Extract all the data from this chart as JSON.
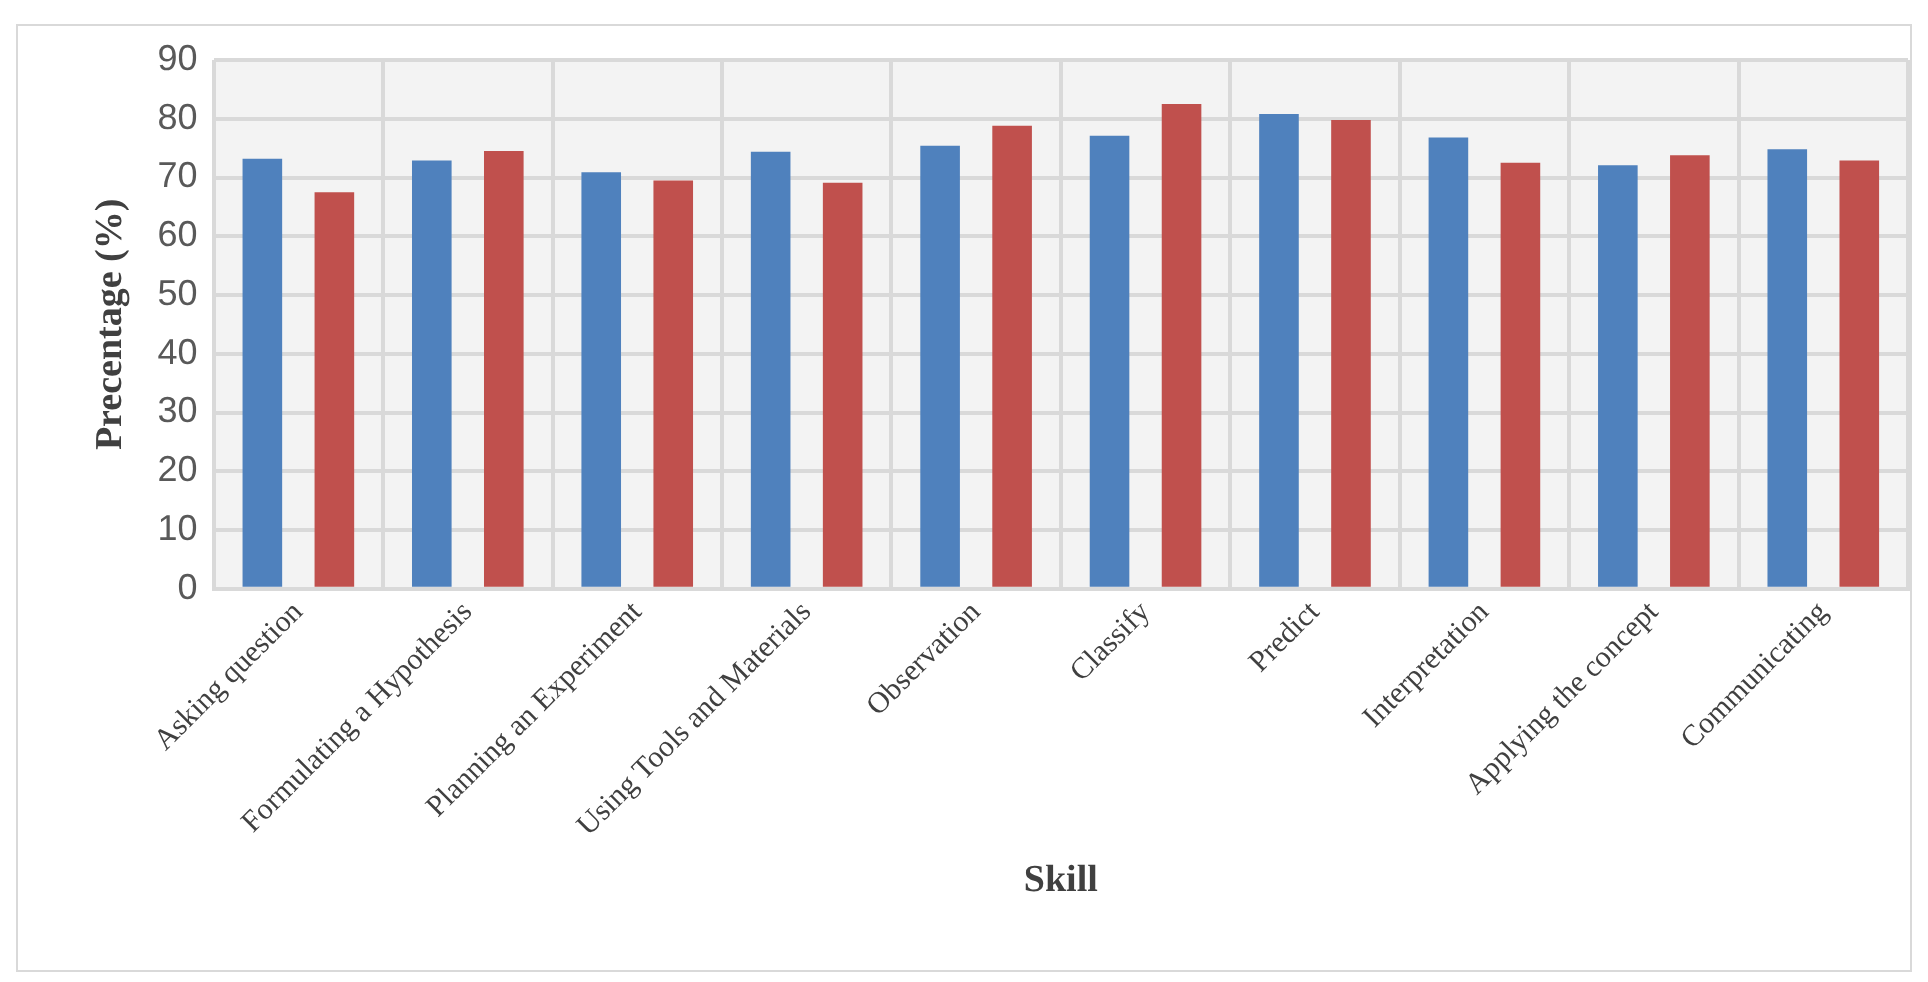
{
  "chart_data": {
    "type": "bar",
    "xlabel": "Skill",
    "ylabel": "Precentage (%)",
    "categories": [
      "Asking question",
      "Formulating a Hypothesis",
      "Planning an Experiment",
      "Using Tools and Materials",
      "Observation",
      "Classify",
      "Predict",
      "Interpretation",
      "Applying the concept",
      "Communicating"
    ],
    "series": [
      {
        "color": "#4f81bd",
        "values": [
          73.2,
          72.9,
          70.9,
          74.4,
          75.4,
          77.1,
          80.8,
          76.8,
          72.1,
          74.8
        ]
      },
      {
        "color": "#c0504d",
        "values": [
          67.5,
          74.5,
          69.5,
          69.1,
          78.8,
          82.5,
          79.8,
          72.5,
          73.8,
          72.9
        ]
      }
    ],
    "ylim": [
      0,
      90
    ],
    "yticks": [
      0,
      10,
      20,
      30,
      40,
      50,
      60,
      70,
      80,
      90
    ],
    "grid": true,
    "legend": false
  }
}
